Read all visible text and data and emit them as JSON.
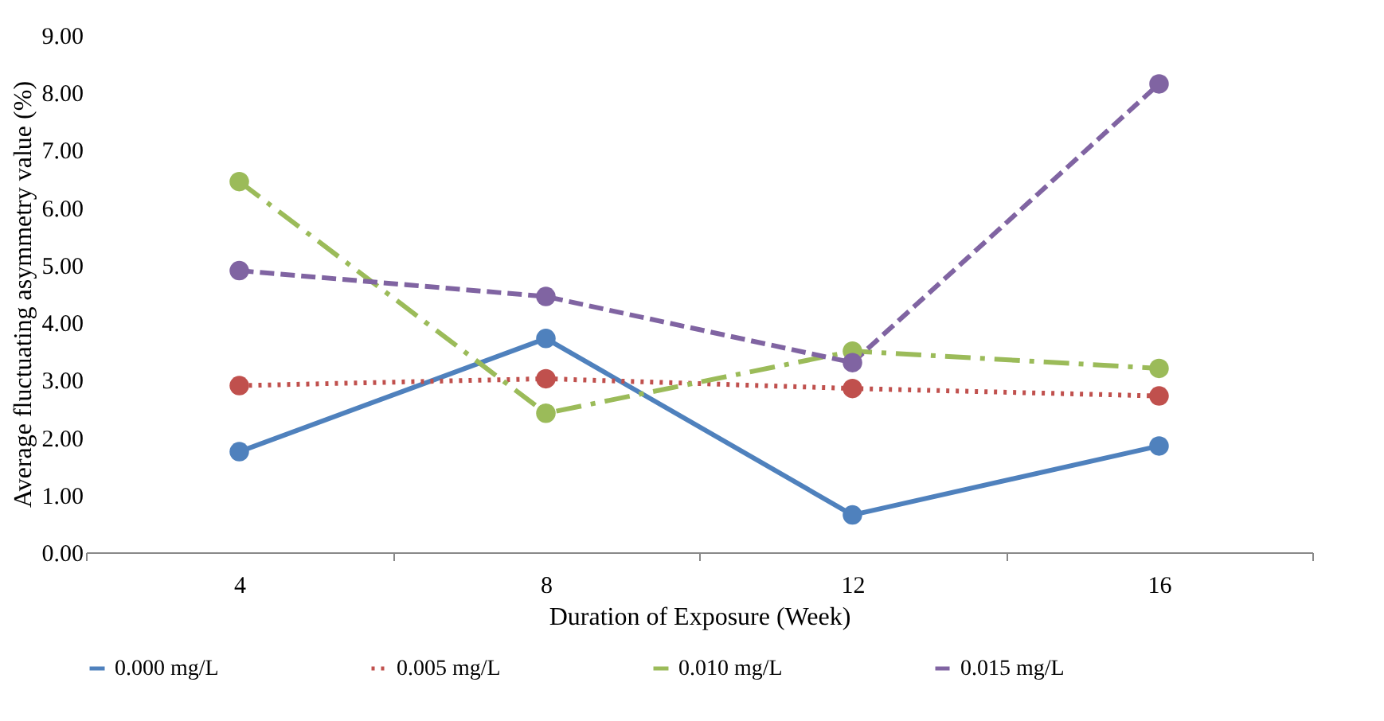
{
  "chart_data": {
    "type": "line",
    "xlabel": "Duration of Exposure (Week)",
    "ylabel": "Average fluctuating asymmetry value (%)",
    "categories": [
      "4",
      "8",
      "12",
      "16"
    ],
    "series": [
      {
        "name": "0.000 mg/L",
        "color": "#4f81bd",
        "line_style": "solid",
        "values": [
          1.75,
          3.72,
          0.65,
          1.85
        ]
      },
      {
        "name": "0.005 mg/L",
        "color": "#c0504d",
        "line_style": "dotted",
        "values": [
          2.9,
          3.02,
          2.85,
          2.72
        ]
      },
      {
        "name": "0.010 mg/L",
        "color": "#9bbb59",
        "line_style": "dashdot",
        "values": [
          6.45,
          2.42,
          3.5,
          3.2
        ]
      },
      {
        "name": "0.015 mg/L",
        "color": "#8064a2",
        "line_style": "dashed",
        "values": [
          4.9,
          4.45,
          3.3,
          8.15
        ]
      }
    ],
    "ylim": [
      0,
      9
    ],
    "yticks": [
      {
        "value": 0,
        "label": "0.00"
      },
      {
        "value": 1,
        "label": "1.00"
      },
      {
        "value": 2,
        "label": "2.00"
      },
      {
        "value": 3,
        "label": "3.00"
      },
      {
        "value": 4,
        "label": "4.00"
      },
      {
        "value": 5,
        "label": "5.00"
      },
      {
        "value": 6,
        "label": "6.00"
      },
      {
        "value": 7,
        "label": "7.00"
      },
      {
        "value": 8,
        "label": "8.00"
      },
      {
        "value": 9,
        "label": "9.00"
      }
    ],
    "marker": "circle",
    "legend": "bottom"
  }
}
